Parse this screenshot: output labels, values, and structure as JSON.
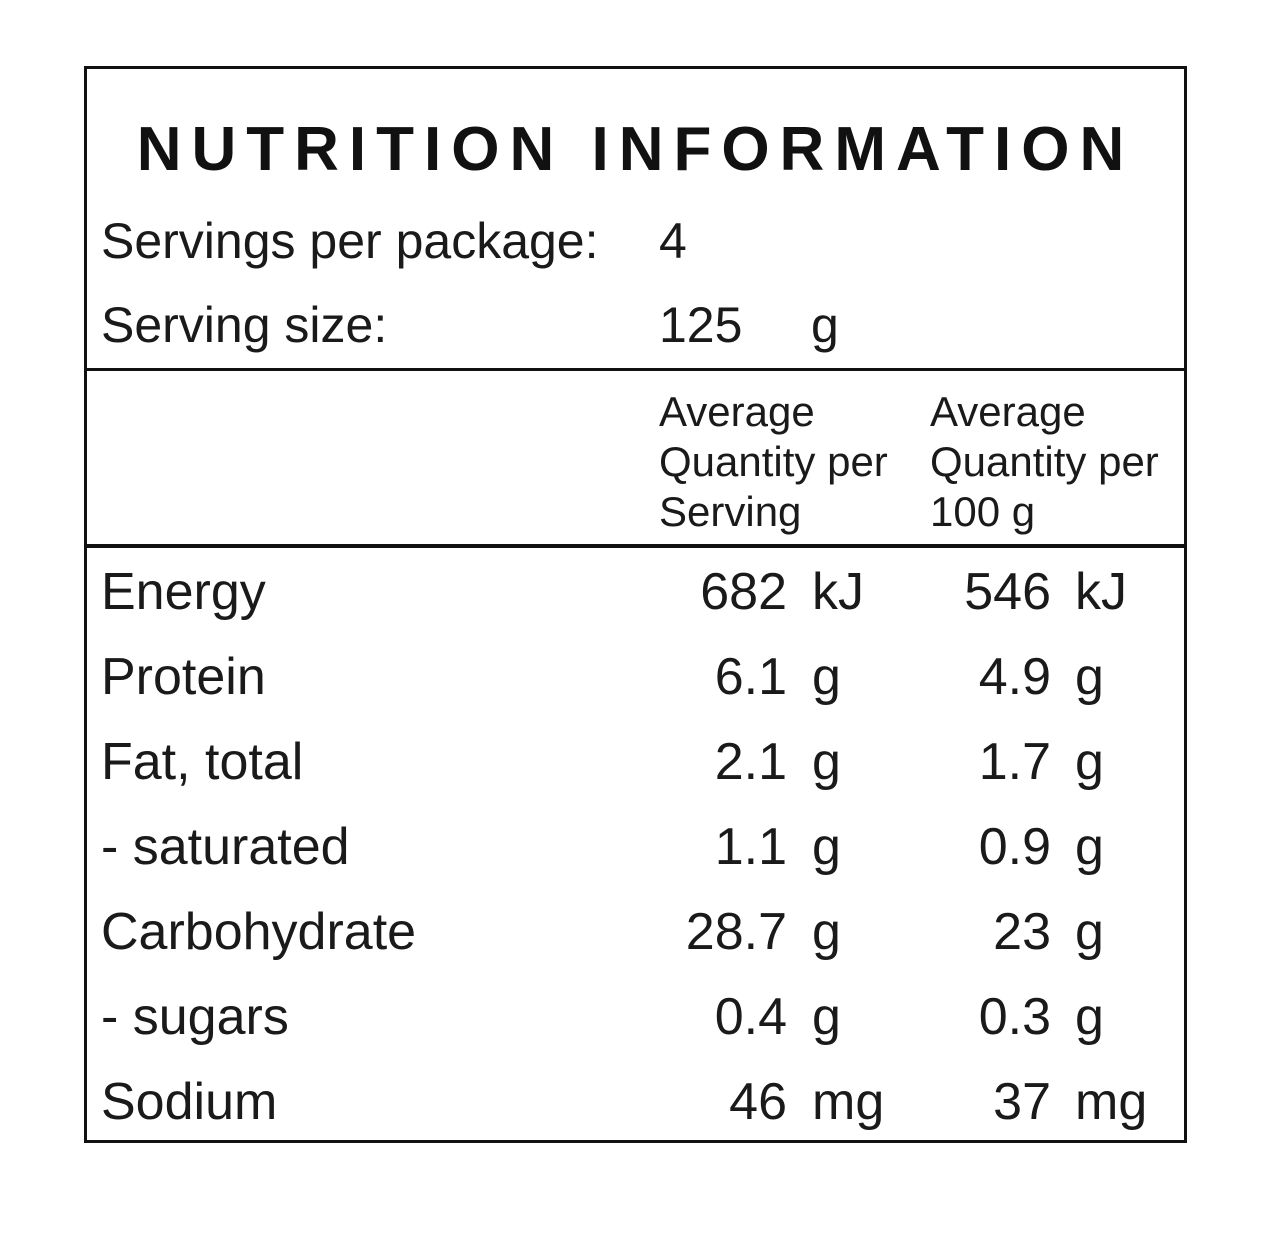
{
  "title": "NUTRITION INFORMATION",
  "servings": {
    "label": "Servings per package:",
    "value": "4"
  },
  "serving_size": {
    "label": "Serving size:",
    "value": "125",
    "unit": "g"
  },
  "columns": {
    "per_serving": "Average\nQuantity per\nServing",
    "per_100g": "Average\nQuantity per\n100 g"
  },
  "rows": [
    {
      "name": "Energy",
      "serving": "682",
      "serving_unit": "kJ",
      "per100": "546",
      "per100_unit": "kJ"
    },
    {
      "name": "Protein",
      "serving": "6.1",
      "serving_unit": "g",
      "per100": "4.9",
      "per100_unit": "g"
    },
    {
      "name": "Fat, total",
      "serving": "2.1",
      "serving_unit": "g",
      "per100": "1.7",
      "per100_unit": "g"
    },
    {
      "name": "- saturated",
      "serving": "1.1",
      "serving_unit": "g",
      "per100": "0.9",
      "per100_unit": "g"
    },
    {
      "name": "Carbohydrate",
      "serving": "28.7",
      "serving_unit": "g",
      "per100": "23",
      "per100_unit": "g"
    },
    {
      "name": "- sugars",
      "serving": "0.4",
      "serving_unit": "g",
      "per100": "0.3",
      "per100_unit": "g"
    },
    {
      "name": "Sodium",
      "serving": "46",
      "serving_unit": "mg",
      "per100": "37",
      "per100_unit": "mg"
    }
  ]
}
